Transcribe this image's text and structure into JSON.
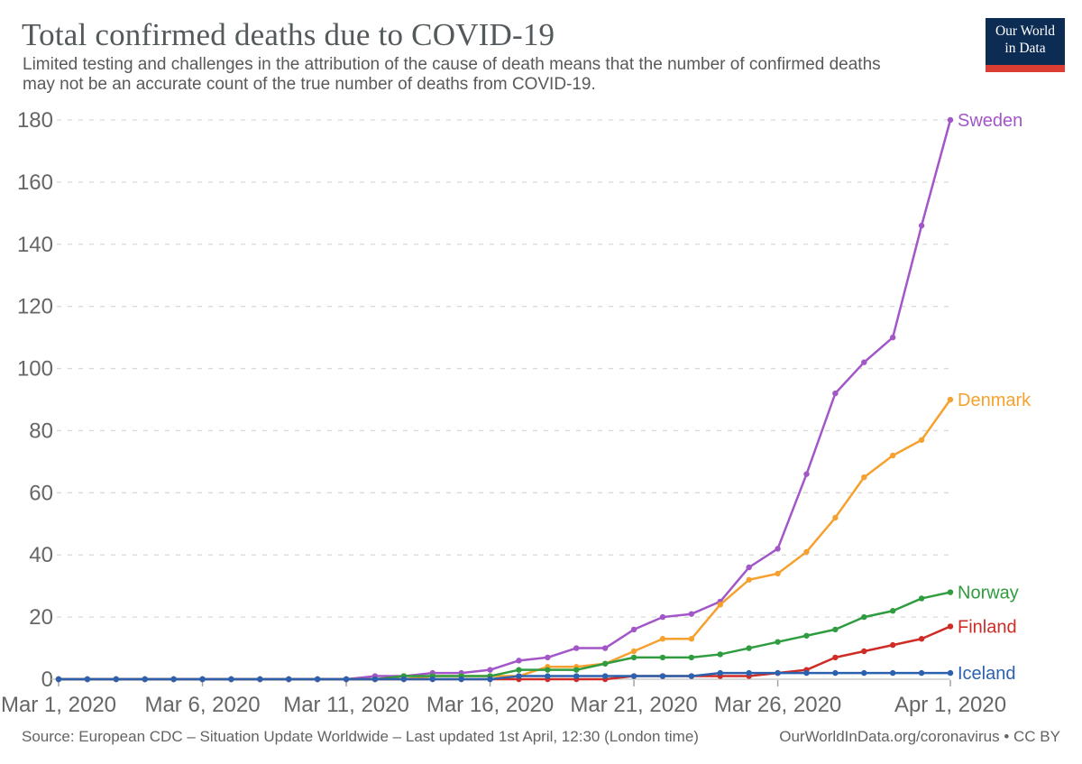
{
  "header": {
    "title": "Total confirmed deaths due to COVID-19",
    "subtitle_lines": [
      "Limited testing and challenges in the attribution of the cause of death means that the number of confirmed deaths",
      "may not be an accurate count of the true number of deaths from COVID-19."
    ],
    "logo": {
      "line1": "Our World",
      "line2": "in Data",
      "bg_color": "#0d2c54",
      "stripe_color": "#dc3d32"
    }
  },
  "chart_data": {
    "type": "line",
    "title": "Total confirmed deaths due to COVID-19",
    "subtitle": "Limited testing and challenges in the attribution of the cause of death means that the number of confirmed deaths may not be an accurate count of the true number of deaths from COVID-19.",
    "xlabel": "",
    "ylabel": "",
    "ylim": [
      0,
      180
    ],
    "yticks": [
      0,
      20,
      40,
      60,
      80,
      100,
      120,
      140,
      160,
      180
    ],
    "grid": true,
    "legend_position": "end-of-line labels",
    "x_start_date": "Mar 1, 2020",
    "x_end_date": "Apr 1, 2020",
    "n_points": 32,
    "x_ticks": [
      {
        "day": 0,
        "label": "Mar 1, 2020"
      },
      {
        "day": 5,
        "label": "Mar 6, 2020"
      },
      {
        "day": 10,
        "label": "Mar 11, 2020"
      },
      {
        "day": 15,
        "label": "Mar 16, 2020"
      },
      {
        "day": 20,
        "label": "Mar 21, 2020"
      },
      {
        "day": 25,
        "label": "Mar 26, 2020"
      },
      {
        "day": 31,
        "label": "Apr 1, 2020"
      }
    ],
    "series": [
      {
        "name": "Sweden",
        "color": "#a256c7",
        "values": [
          0,
          0,
          0,
          0,
          0,
          0,
          0,
          0,
          0,
          0,
          0,
          1,
          1,
          2,
          2,
          3,
          6,
          7,
          10,
          10,
          16,
          20,
          21,
          25,
          36,
          42,
          66,
          92,
          102,
          110,
          146,
          180
        ]
      },
      {
        "name": "Denmark",
        "color": "#f6a12f",
        "values": [
          0,
          0,
          0,
          0,
          0,
          0,
          0,
          0,
          0,
          0,
          0,
          0,
          0,
          1,
          1,
          1,
          1,
          4,
          4,
          5,
          9,
          13,
          13,
          24,
          32,
          34,
          41,
          52,
          65,
          72,
          77,
          90
        ]
      },
      {
        "name": "Norway",
        "color": "#2f9c3f",
        "values": [
          0,
          0,
          0,
          0,
          0,
          0,
          0,
          0,
          0,
          0,
          0,
          0,
          1,
          1,
          1,
          1,
          3,
          3,
          3,
          5,
          7,
          7,
          7,
          8,
          10,
          12,
          14,
          16,
          20,
          22,
          26,
          28
        ]
      },
      {
        "name": "Finland",
        "color": "#d02c26",
        "values": [
          0,
          0,
          0,
          0,
          0,
          0,
          0,
          0,
          0,
          0,
          0,
          0,
          0,
          0,
          0,
          0,
          0,
          0,
          0,
          0,
          1,
          1,
          1,
          1,
          1,
          2,
          3,
          7,
          9,
          11,
          13,
          17
        ]
      },
      {
        "name": "Iceland",
        "color": "#2b61ae",
        "values": [
          0,
          0,
          0,
          0,
          0,
          0,
          0,
          0,
          0,
          0,
          0,
          0,
          0,
          0,
          0,
          0,
          1,
          1,
          1,
          1,
          1,
          1,
          1,
          2,
          2,
          2,
          2,
          2,
          2,
          2,
          2,
          2
        ]
      }
    ],
    "style": {
      "grid_color": "#d9d9d9",
      "axis_color": "#cccccc",
      "tick_color": "#a3a3a3",
      "tick_label_color": "#666666"
    }
  },
  "footer": {
    "source": "Source: European CDC – Situation Update Worldwide – Last updated 1st April, 12:30 (London time)",
    "link": "OurWorldInData.org/coronavirus • CC BY"
  }
}
